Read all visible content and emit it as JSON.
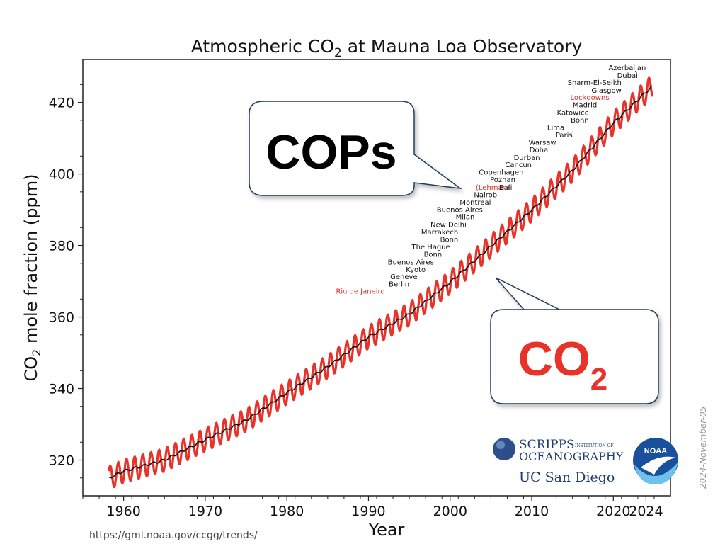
{
  "chart_data": {
    "type": "line",
    "title_pre": "Atmospheric CO",
    "title_sub": "2",
    "title_post": " at Mauna Loa Observatory",
    "xlabel": "Year",
    "ylabel_pre": "CO",
    "ylabel_sub": "2",
    "ylabel_post": " mole fraction (ppm)",
    "xlim": [
      1955,
      2027
    ],
    "ylim": [
      310,
      432
    ],
    "x_ticks": [
      "1960",
      "1970",
      "1980",
      "1990",
      "2000",
      "2010",
      "2020",
      "2024"
    ],
    "y_ticks": [
      "320",
      "340",
      "360",
      "380",
      "400",
      "420"
    ],
    "series": [
      {
        "color": "#e8332a",
        "kind": "monthly",
        "start_year": 1958.2,
        "end_year": 2024.8,
        "seasonal_amplitude_ppm": 3.2
      },
      {
        "color": "#111111",
        "kind": "annual-trend"
      }
    ],
    "trend_points": [
      {
        "x": 1958.2,
        "y": 315.0
      },
      {
        "x": 1960,
        "y": 316.9
      },
      {
        "x": 1965,
        "y": 320.0
      },
      {
        "x": 1970,
        "y": 325.7
      },
      {
        "x": 1975,
        "y": 331.1
      },
      {
        "x": 1980,
        "y": 338.8
      },
      {
        "x": 1985,
        "y": 346.1
      },
      {
        "x": 1990,
        "y": 354.4
      },
      {
        "x": 1995,
        "y": 360.8
      },
      {
        "x": 2000,
        "y": 369.7
      },
      {
        "x": 2005,
        "y": 379.8
      },
      {
        "x": 2010,
        "y": 389.9
      },
      {
        "x": 2015,
        "y": 401.0
      },
      {
        "x": 2020,
        "y": 414.2
      },
      {
        "x": 2024.8,
        "y": 424.6
      }
    ],
    "annotations": [
      {
        "text": "Rio de Janeiro",
        "red": true,
        "x": 1992.0,
        "y": 366.5
      },
      {
        "text": "Berlin",
        "red": false,
        "x": 1995.0,
        "y": 368.5
      },
      {
        "text": "Geneve",
        "red": false,
        "x": 1996.0,
        "y": 370.6
      },
      {
        "text": "Kyoto",
        "red": false,
        "x": 1997.0,
        "y": 372.6
      },
      {
        "text": "Buenos Aires",
        "red": false,
        "x": 1998.0,
        "y": 374.7
      },
      {
        "text": "Bonn",
        "red": false,
        "x": 1999.0,
        "y": 376.8
      },
      {
        "text": "The Hague",
        "red": false,
        "x": 2000.0,
        "y": 378.9
      },
      {
        "text": "Bonn",
        "red": false,
        "x": 2001.0,
        "y": 381.0
      },
      {
        "text": "Marrakech",
        "red": false,
        "x": 2001.0,
        "y": 383.1
      },
      {
        "text": "New Delhi",
        "red": false,
        "x": 2002.0,
        "y": 385.2
      },
      {
        "text": "Milan",
        "red": false,
        "x": 2003.0,
        "y": 387.3
      },
      {
        "text": "Buenos Aires",
        "red": false,
        "x": 2004.0,
        "y": 389.3
      },
      {
        "text": "Montreal",
        "red": false,
        "x": 2005.0,
        "y": 391.4
      },
      {
        "text": "Nairobi",
        "red": false,
        "x": 2006.0,
        "y": 393.5
      },
      {
        "text": "(Lehman)",
        "red": true,
        "x": 2007.3,
        "y": 395.6
      },
      {
        "text": "Bali",
        "red": false,
        "x": 2007.6,
        "y": 395.6
      },
      {
        "text": "Poznan",
        "red": false,
        "x": 2008.0,
        "y": 397.7
      },
      {
        "text": "Copenhagen",
        "red": false,
        "x": 2009.0,
        "y": 399.8
      },
      {
        "text": "Cancun",
        "red": false,
        "x": 2010.0,
        "y": 401.9
      },
      {
        "text": "Durban",
        "red": false,
        "x": 2011.0,
        "y": 403.9
      },
      {
        "text": "Doha",
        "red": false,
        "x": 2012.0,
        "y": 406.1
      },
      {
        "text": "Warsaw",
        "red": false,
        "x": 2013.0,
        "y": 408.1
      },
      {
        "text": "Paris",
        "red": false,
        "x": 2015.0,
        "y": 410.2
      },
      {
        "text": "Lima",
        "red": false,
        "x": 2014.0,
        "y": 412.3
      },
      {
        "text": "Bonn",
        "red": false,
        "x": 2017.0,
        "y": 414.4
      },
      {
        "text": "Katowice",
        "red": false,
        "x": 2017.0,
        "y": 416.5
      },
      {
        "text": "Madrid",
        "red": false,
        "x": 2018.0,
        "y": 418.6
      },
      {
        "text": "Lockdowns",
        "red": true,
        "x": 2019.5,
        "y": 420.7
      },
      {
        "text": "Glasgow",
        "red": false,
        "x": 2021.0,
        "y": 422.7
      },
      {
        "text": "Sharm-El-Seikh",
        "red": false,
        "x": 2021.0,
        "y": 424.9
      },
      {
        "text": "Dubai",
        "red": false,
        "x": 2023.0,
        "y": 426.9
      },
      {
        "text": "Azerbaijan",
        "red": false,
        "x": 2024.0,
        "y": 429.0
      }
    ]
  },
  "bubbles": {
    "cops": {
      "text": "COPs",
      "color": "#000000"
    },
    "co2": {
      "text_main": "CO",
      "text_sub": "2",
      "color": "#e8332a"
    }
  },
  "logos": {
    "scripps_line1": "SCRIPPS",
    "scripps_line1_small": "INSTITUTION OF",
    "scripps_line2": "OCEANOGRAPHY",
    "ucsd": "UC San Diego",
    "noaa": "NOAA"
  },
  "date_stamp": "2024-November-05",
  "source_url": "https://gml.noaa.gov/ccgg/trends/"
}
